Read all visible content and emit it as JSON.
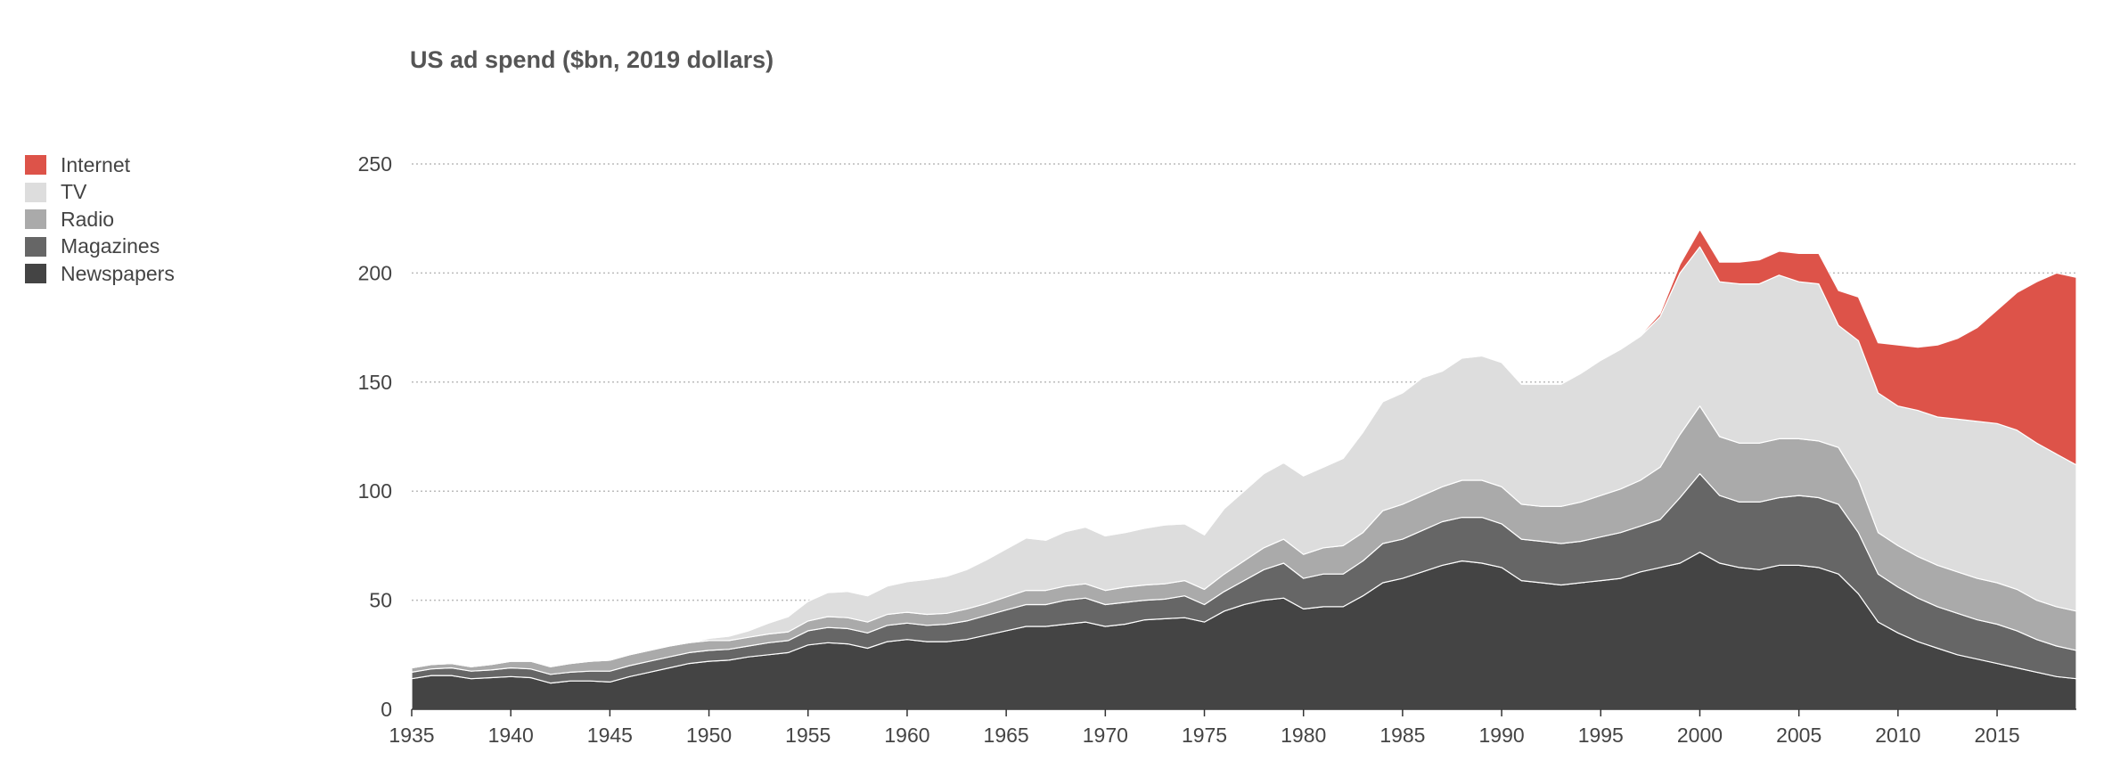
{
  "chart_data": {
    "type": "area",
    "title": "US ad spend ($bn, 2019 dollars)",
    "xlabel": "",
    "ylabel": "",
    "xlim": [
      1935,
      2019
    ],
    "ylim": [
      0,
      250
    ],
    "y_ticks": [
      0,
      50,
      100,
      150,
      200,
      250
    ],
    "x_ticks": [
      1935,
      1940,
      1945,
      1950,
      1955,
      1960,
      1965,
      1970,
      1975,
      1980,
      1985,
      1990,
      1995,
      2000,
      2005,
      2010,
      2015
    ],
    "stacked": true,
    "grid": "horizontal-dotted",
    "legend_position": "left",
    "x": [
      1935,
      1936,
      1937,
      1938,
      1939,
      1940,
      1941,
      1942,
      1943,
      1944,
      1945,
      1946,
      1947,
      1948,
      1949,
      1950,
      1951,
      1952,
      1953,
      1954,
      1955,
      1956,
      1957,
      1958,
      1959,
      1960,
      1961,
      1962,
      1963,
      1964,
      1965,
      1966,
      1967,
      1968,
      1969,
      1970,
      1971,
      1972,
      1973,
      1974,
      1975,
      1976,
      1977,
      1978,
      1979,
      1980,
      1981,
      1982,
      1983,
      1984,
      1985,
      1986,
      1987,
      1988,
      1989,
      1990,
      1991,
      1992,
      1993,
      1994,
      1995,
      1996,
      1997,
      1998,
      1999,
      2000,
      2001,
      2002,
      2003,
      2004,
      2005,
      2006,
      2007,
      2008,
      2009,
      2010,
      2011,
      2012,
      2013,
      2014,
      2015,
      2016,
      2017,
      2018,
      2019
    ],
    "series": [
      {
        "name": "Newspapers",
        "color": "#444444",
        "values": [
          14,
          15.5,
          15.5,
          14,
          14.5,
          15,
          14.5,
          12,
          13,
          13,
          12.5,
          15,
          17,
          19,
          21,
          22,
          22.5,
          24,
          25,
          26,
          29.5,
          30.5,
          30,
          28,
          31,
          32,
          31,
          31,
          32,
          34,
          36,
          38,
          38,
          39,
          40,
          38,
          39,
          41,
          41.5,
          42,
          40,
          45,
          48,
          50,
          51,
          46,
          47,
          47,
          52,
          58,
          60,
          63,
          66,
          68,
          67,
          65,
          59,
          58,
          57,
          58,
          59,
          60,
          63,
          65,
          67,
          72,
          67,
          65,
          64,
          66,
          66,
          65,
          62,
          53,
          40,
          35,
          31,
          28,
          25,
          23,
          21,
          19,
          17,
          15,
          14
        ]
      },
      {
        "name": "Magazines",
        "color": "#666666",
        "values": [
          3,
          3,
          3.5,
          3.5,
          3.5,
          4,
          4,
          4,
          4,
          4.5,
          5,
          5,
          5,
          5,
          5,
          5,
          5,
          5,
          5.5,
          5.5,
          6.5,
          7,
          7,
          7,
          7.5,
          7.5,
          7.5,
          8,
          8.5,
          9,
          9.5,
          10,
          10,
          11,
          11,
          10,
          10,
          9,
          9,
          10,
          8,
          9,
          11,
          14,
          16,
          14,
          15,
          15,
          16,
          18,
          18,
          19,
          20,
          20,
          21,
          20,
          19,
          19,
          19,
          19,
          20,
          21,
          21,
          22,
          30,
          36,
          31,
          30,
          31,
          31,
          32,
          32,
          32,
          28,
          22,
          21,
          20,
          19,
          19,
          18,
          18,
          17,
          15,
          14,
          13
        ]
      },
      {
        "name": "Radio",
        "color": "#aaaaaa",
        "values": [
          2,
          2,
          2,
          2,
          2.5,
          3,
          3.5,
          3.5,
          4,
          4.5,
          5,
          5,
          5,
          5,
          4.5,
          4.5,
          4,
          4,
          4,
          4,
          4.5,
          5,
          5,
          5,
          5,
          5,
          5,
          5,
          5.5,
          5.5,
          6,
          6.5,
          6.5,
          6.5,
          6.5,
          6.5,
          7,
          7,
          7,
          7,
          7,
          8,
          9,
          10,
          11,
          11,
          12,
          13,
          13,
          15,
          16,
          16,
          16,
          17,
          17,
          17,
          16,
          16,
          17,
          18,
          19,
          20,
          21,
          24,
          29,
          31,
          27,
          27,
          27,
          27,
          26,
          26,
          26,
          24,
          19,
          19,
          19,
          19,
          19,
          19,
          19,
          19,
          18,
          18,
          18
        ]
      },
      {
        "name": "TV",
        "color": "#dddddd",
        "values": [
          0,
          0,
          0,
          0,
          0,
          0,
          0,
          0,
          0,
          0,
          0,
          0,
          0,
          0,
          0,
          1,
          2,
          3,
          5,
          7,
          9,
          11,
          12,
          12,
          13,
          14,
          16,
          17,
          18,
          20,
          22,
          24,
          23,
          25,
          26,
          25,
          25,
          26,
          27,
          26,
          25,
          30,
          32,
          34,
          35,
          36,
          37,
          40,
          46,
          50,
          51,
          54,
          53,
          56,
          57,
          57,
          55,
          56,
          56,
          59,
          62,
          64,
          66,
          69,
          74,
          73,
          71,
          73,
          73,
          75,
          72,
          72,
          56,
          64,
          64,
          64,
          67,
          68,
          70,
          72,
          73,
          73,
          72,
          70,
          67
        ]
      },
      {
        "name": "Internet",
        "color": "#dd5349",
        "values": [
          0,
          0,
          0,
          0,
          0,
          0,
          0,
          0,
          0,
          0,
          0,
          0,
          0,
          0,
          0,
          0,
          0,
          0,
          0,
          0,
          0,
          0,
          0,
          0,
          0,
          0,
          0,
          0,
          0,
          0,
          0,
          0,
          0,
          0,
          0,
          0,
          0,
          0,
          0,
          0,
          0,
          0,
          0,
          0,
          0,
          0,
          0,
          0,
          0,
          0,
          0,
          0,
          0,
          0,
          0,
          0,
          0,
          0,
          0,
          0,
          0,
          0,
          0.5,
          1.5,
          4,
          8,
          9,
          10,
          11,
          11,
          13,
          14,
          16,
          20,
          23,
          28,
          29,
          33,
          37,
          43,
          52,
          63,
          74,
          83,
          86
        ]
      }
    ]
  }
}
